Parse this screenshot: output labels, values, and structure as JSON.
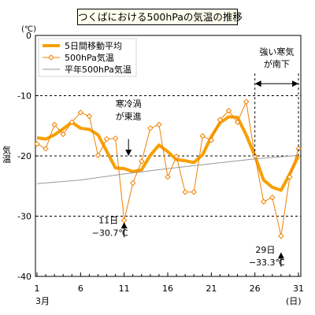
{
  "chart_data": {
    "type": "line",
    "title": "つくばにおける500hPaの気温の推移",
    "y_unit": "(℃)",
    "ylabel": "気温",
    "x_unit": "(日)",
    "month_label": "3月",
    "ylim": [
      -40,
      0
    ],
    "xlim": [
      1,
      31
    ],
    "y_ticks": [
      0,
      -10,
      -20,
      -30,
      -40
    ],
    "x_ticks": [
      1,
      6,
      11,
      16,
      21,
      26,
      31
    ],
    "grid": "dashed horizontal lines at -10, -20, -30",
    "legend": "top-left",
    "series": [
      {
        "name": "5日間移動平均",
        "color": "#f7a000",
        "x": [
          1,
          2,
          3,
          4,
          5,
          6,
          7,
          8,
          9,
          10,
          11,
          12,
          13,
          14,
          15,
          16,
          17,
          18,
          19,
          20,
          21,
          22,
          23,
          24,
          25,
          26,
          27,
          28,
          29,
          30,
          31
        ],
        "values": [
          -17.0,
          -17.2,
          -16.5,
          -15.5,
          -14.4,
          -15.4,
          -15.6,
          -16.5,
          -19.2,
          -22.0,
          -22.1,
          -22.6,
          -22.3,
          -19.9,
          -18.2,
          -19.3,
          -20.6,
          -20.8,
          -21.1,
          -19.8,
          -16.8,
          -14.5,
          -13.5,
          -13.6,
          -16.5,
          -20.0,
          -24.0,
          -25.2,
          -25.7,
          -23.0,
          -20.0
        ]
      },
      {
        "name": "500hPa気温",
        "color": "#f08000",
        "x": [
          1,
          2,
          3,
          4,
          5,
          6,
          7,
          8,
          9,
          10,
          11,
          12,
          13,
          14,
          15,
          16,
          17,
          18,
          19,
          20,
          21,
          22,
          23,
          24,
          25,
          26,
          27,
          28,
          29,
          30,
          31
        ],
        "values": [
          -18.0,
          -18.8,
          -14.8,
          -16.4,
          -14.4,
          -12.8,
          -13.4,
          -19.9,
          -17.2,
          -17.1,
          -30.7,
          -24.5,
          -20.9,
          -15.4,
          -14.8,
          -23.5,
          -20.1,
          -26.0,
          -26.0,
          -16.7,
          -17.4,
          -14.0,
          -12.5,
          -14.4,
          -11.0,
          -20.0,
          -27.6,
          -26.9,
          -33.3,
          -23.5,
          -18.8
        ]
      },
      {
        "name": "平年500hPa気温",
        "color": "#999999",
        "x": [
          1,
          6,
          11,
          16,
          21,
          26,
          31
        ],
        "values": [
          -24.6,
          -24.0,
          -23.0,
          -22.1,
          -21.3,
          -20.5,
          -19.9
        ]
      }
    ],
    "annotations": [
      {
        "text": "寒冷渦",
        "text2": "が東進",
        "x": 11.5,
        "type": "arrow-down",
        "arrow_from": -17.2,
        "arrow_to": -20.0
      },
      {
        "text": "11日",
        "text2": "−30.7℃",
        "x": 11,
        "type": "arrow-up",
        "arrow_from": -33.5,
        "arrow_to": -31.0
      },
      {
        "text": "29日",
        "text2": "−33.3℃",
        "x": 29,
        "type": "arrow-up",
        "arrow_from": -38.4,
        "arrow_to": -36.0
      },
      {
        "text": "強い寒気",
        "text2": "が南下",
        "x_from": 26,
        "x_to": 31,
        "type": "range-arrow"
      }
    ]
  }
}
